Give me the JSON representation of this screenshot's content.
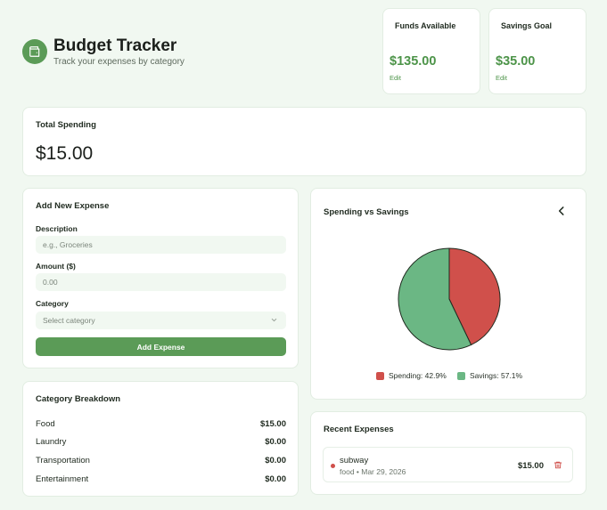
{
  "header": {
    "title": "Budget Tracker",
    "subtitle": "Track your expenses by category",
    "logo_icon": "wallet-icon"
  },
  "stats": {
    "funds": {
      "label": "Funds Available",
      "value": "$135.00",
      "edit": "Edit"
    },
    "savings": {
      "label": "Savings Goal",
      "value": "$35.00",
      "edit": "Edit"
    }
  },
  "total": {
    "label": "Total Spending",
    "value": "$15.00"
  },
  "add_expense": {
    "title": "Add New Expense",
    "description_label": "Description",
    "description_placeholder": "e.g., Groceries",
    "amount_label": "Amount ($)",
    "amount_placeholder": "0.00",
    "category_label": "Category",
    "category_value": "Select category",
    "button": "Add Expense"
  },
  "breakdown": {
    "title": "Category Breakdown",
    "rows": [
      {
        "name": "Food",
        "amount": "$15.00"
      },
      {
        "name": "Laundry",
        "amount": "$0.00"
      },
      {
        "name": "Transportation",
        "amount": "$0.00"
      },
      {
        "name": "Entertainment",
        "amount": "$0.00"
      }
    ]
  },
  "chart_panel": {
    "title": "Spending vs Savings",
    "collapse_icon": "chevron-left-icon"
  },
  "chart_data": {
    "type": "pie",
    "title": "Spending vs Savings",
    "slices": [
      {
        "label": "Spending",
        "value": 42.9,
        "color": "#d0504b"
      },
      {
        "label": "Savings",
        "value": 57.1,
        "color": "#6bb784"
      }
    ],
    "legend": [
      "Spending: 42.9%",
      "Savings: 57.1%"
    ],
    "legend_position": "bottom"
  },
  "recent": {
    "title": "Recent Expenses",
    "items": [
      {
        "name": "subway",
        "meta": "food • Mar 29, 2026",
        "amount": "$15.00",
        "delete_icon": "trash-icon"
      }
    ]
  },
  "colors": {
    "accent": "#5b9b57",
    "accent_text": "#4d9449",
    "background": "#f1f8f1",
    "danger": "#d0504b"
  }
}
